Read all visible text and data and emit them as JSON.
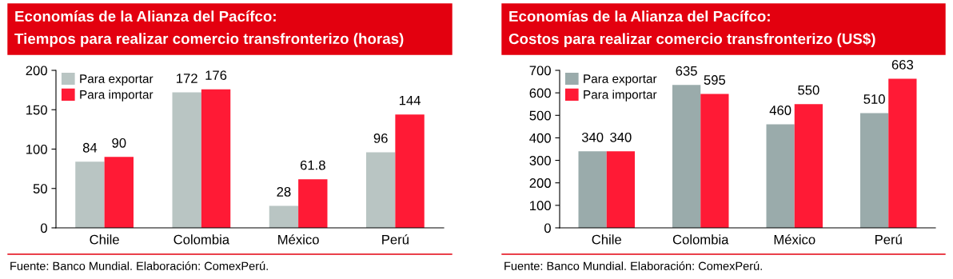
{
  "chart_data": [
    {
      "type": "bar",
      "title": "Economías de la Alianza del Pacífco:",
      "subtitle": "Tiempos para realizar comercio transfronterizo (horas)",
      "categories": [
        "Chile",
        "Colombia",
        "México",
        "Perú"
      ],
      "series": [
        {
          "name": "Para exportar",
          "color": "#b9c5c3",
          "values": [
            84,
            172,
            28,
            96
          ]
        },
        {
          "name": "Para importar",
          "color": "#ff1a35",
          "values": [
            90,
            176,
            61.8,
            144
          ]
        }
      ],
      "ylim": [
        0,
        200
      ],
      "yticks": [
        0,
        50,
        100,
        150,
        200
      ],
      "grid": false,
      "legend": "top left",
      "data_labels": true,
      "annotations": [
        "Fuente: Banco Mundial. Elaboración: ComexPerú."
      ]
    },
    {
      "type": "bar",
      "title": "Economías de la Alianza del Pacífco:",
      "subtitle": "Costos para realizar comercio transfronterizo (US$)",
      "categories": [
        "Chile",
        "Colombia",
        "México",
        "Perú"
      ],
      "series": [
        {
          "name": "Para exportar",
          "color": "#9aabab",
          "values": [
            340,
            635,
            460,
            510
          ]
        },
        {
          "name": "Para importar",
          "color": "#ff1a35",
          "values": [
            340,
            595,
            550,
            663
          ]
        }
      ],
      "ylim": [
        0,
        700
      ],
      "yticks": [
        0,
        100,
        200,
        300,
        400,
        500,
        600,
        700
      ],
      "grid": false,
      "legend": "top left",
      "data_labels": true,
      "annotations": [
        "Fuente: Banco Mundial. Elaboración: ComexPerú."
      ]
    }
  ]
}
